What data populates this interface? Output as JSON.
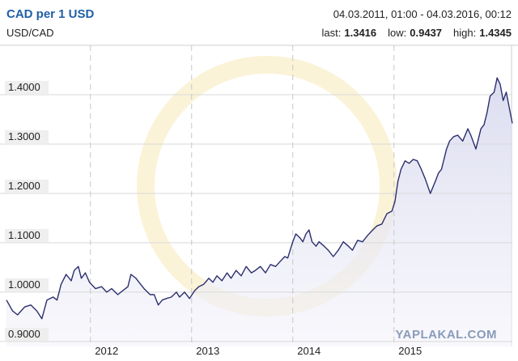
{
  "chart_data": {
    "type": "line",
    "title": "CAD per 1 USD",
    "date_range": "04.03.2011, 01:00 - 04.03.2016, 00:12",
    "subtitle": "USD/CAD",
    "stats": [
      {
        "label": "last:",
        "value": 1.3416
      },
      {
        "label": "low:",
        "value": 0.9437
      },
      {
        "label": "high:",
        "value": 1.4345
      }
    ],
    "watermark": "YAPLAKAL.COM",
    "color": "#2b2f6e",
    "grid": true,
    "xlim": [
      2011.17,
      2016.17
    ],
    "xticks": [
      2012,
      2013,
      2014,
      2015
    ],
    "ylim": [
      0.89,
      1.5
    ],
    "yticks": [
      {
        "value": 0.9,
        "label": "0.9000"
      },
      {
        "value": 1.0,
        "label": "1.0000"
      },
      {
        "value": 1.1,
        "label": "1.1000"
      },
      {
        "value": 1.2,
        "label": "1.2000"
      },
      {
        "value": 1.3,
        "label": "1.3000"
      },
      {
        "value": 1.4,
        "label": "1.4000"
      }
    ],
    "x": [
      2011.17,
      2011.23,
      2011.28,
      2011.35,
      2011.41,
      2011.47,
      2011.52,
      2011.57,
      2011.63,
      2011.67,
      2011.71,
      2011.76,
      2011.81,
      2011.84,
      2011.88,
      2011.91,
      2011.95,
      2011.99,
      2012.05,
      2012.11,
      2012.16,
      2012.21,
      2012.27,
      2012.32,
      2012.37,
      2012.4,
      2012.45,
      2012.48,
      2012.53,
      2012.59,
      2012.63,
      2012.67,
      2012.71,
      2012.75,
      2012.8,
      2012.85,
      2012.88,
      2012.93,
      2012.98,
      2013.03,
      2013.07,
      2013.12,
      2013.17,
      2013.21,
      2013.25,
      2013.3,
      2013.35,
      2013.39,
      2013.44,
      2013.49,
      2013.54,
      2013.59,
      2013.63,
      2013.68,
      2013.73,
      2013.78,
      2013.83,
      2013.87,
      2013.92,
      2013.95,
      2014.0,
      2014.03,
      2014.07,
      2014.1,
      2014.13,
      2014.16,
      2014.19,
      2014.23,
      2014.26,
      2014.31,
      2014.35,
      2014.4,
      2014.45,
      2014.5,
      2014.55,
      2014.59,
      2014.64,
      2014.69,
      2014.74,
      2014.79,
      2014.83,
      2014.88,
      2014.93,
      2014.98,
      2015.01,
      2015.04,
      2015.07,
      2015.11,
      2015.15,
      2015.19,
      2015.23,
      2015.27,
      2015.31,
      2015.36,
      2015.41,
      2015.44,
      2015.47,
      2015.52,
      2015.55,
      2015.59,
      2015.63,
      2015.68,
      2015.73,
      2015.76,
      2015.81,
      2015.86,
      2015.89,
      2015.92,
      2015.95,
      2015.99,
      2016.02,
      2016.05,
      2016.08,
      2016.11,
      2016.17
    ],
    "values": [
      0.984,
      0.962,
      0.954,
      0.97,
      0.974,
      0.962,
      0.946,
      0.984,
      0.99,
      0.984,
      1.016,
      1.036,
      1.023,
      1.044,
      1.052,
      1.028,
      1.039,
      1.02,
      1.007,
      1.011,
      1.0,
      1.007,
      0.995,
      1.003,
      1.011,
      1.036,
      1.028,
      1.02,
      1.007,
      0.995,
      0.995,
      0.974,
      0.984,
      0.987,
      0.99,
      1.0,
      0.99,
      1.0,
      0.987,
      1.003,
      1.011,
      1.016,
      1.028,
      1.02,
      1.033,
      1.023,
      1.039,
      1.028,
      1.044,
      1.033,
      1.052,
      1.039,
      1.044,
      1.052,
      1.039,
      1.056,
      1.052,
      1.061,
      1.072,
      1.069,
      1.102,
      1.118,
      1.11,
      1.102,
      1.118,
      1.126,
      1.102,
      1.093,
      1.102,
      1.093,
      1.085,
      1.072,
      1.085,
      1.102,
      1.093,
      1.085,
      1.105,
      1.102,
      1.115,
      1.126,
      1.134,
      1.138,
      1.159,
      1.164,
      1.184,
      1.225,
      1.249,
      1.266,
      1.261,
      1.269,
      1.266,
      1.249,
      1.229,
      1.2,
      1.225,
      1.241,
      1.249,
      1.29,
      1.306,
      1.315,
      1.318,
      1.306,
      1.331,
      1.318,
      1.29,
      1.331,
      1.339,
      1.364,
      1.397,
      1.405,
      1.434,
      1.421,
      1.388,
      1.405,
      1.342
    ]
  }
}
